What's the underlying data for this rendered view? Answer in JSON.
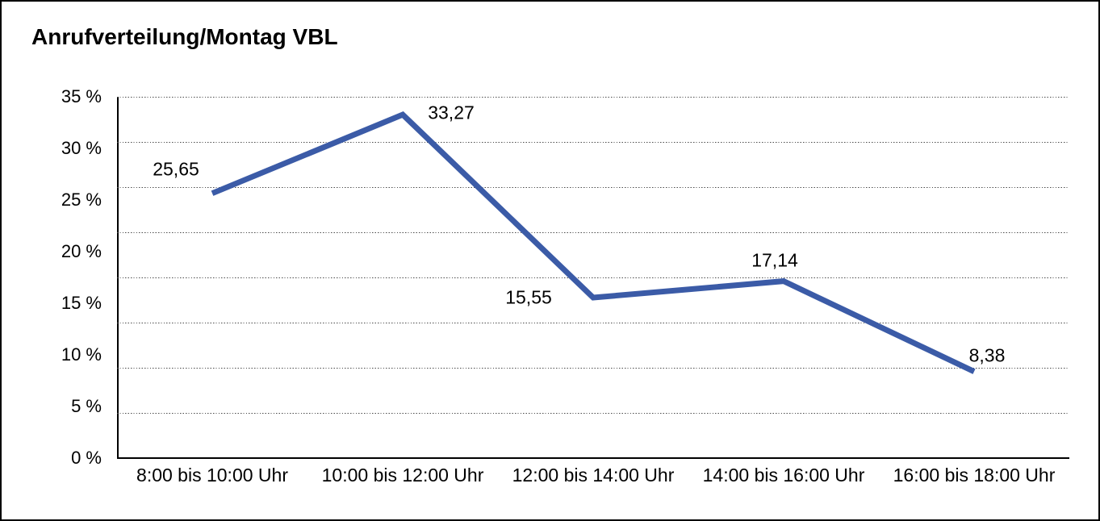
{
  "title": "Anrufverteilung/Montag VBL",
  "chart_data": {
    "type": "line",
    "title": "Anrufverteilung/Montag VBL",
    "categories": [
      "8:00 bis 10:00 Uhr",
      "10:00 bis 12:00 Uhr",
      "12:00 bis 14:00 Uhr",
      "14:00 bis 16:00 Uhr",
      "16:00 bis 18:00 Uhr"
    ],
    "values": [
      25.65,
      33.27,
      15.55,
      17.14,
      8.38
    ],
    "value_labels": [
      "25,65",
      "33,27",
      "15,55",
      "17,14",
      "8,38"
    ],
    "xlabel": "",
    "ylabel": "",
    "ylim": [
      0,
      35
    ],
    "ytick_labels": [
      "35 %",
      "30 %",
      "25 %",
      "20 %",
      "15 %",
      "10 %",
      "5 %",
      "0 %"
    ],
    "grid": "horizontal-dotted",
    "gridline_intervals": 8,
    "legend": "none",
    "line_color": "#3b5ba7",
    "axis_color": "#000000",
    "text_color": "#000000"
  }
}
